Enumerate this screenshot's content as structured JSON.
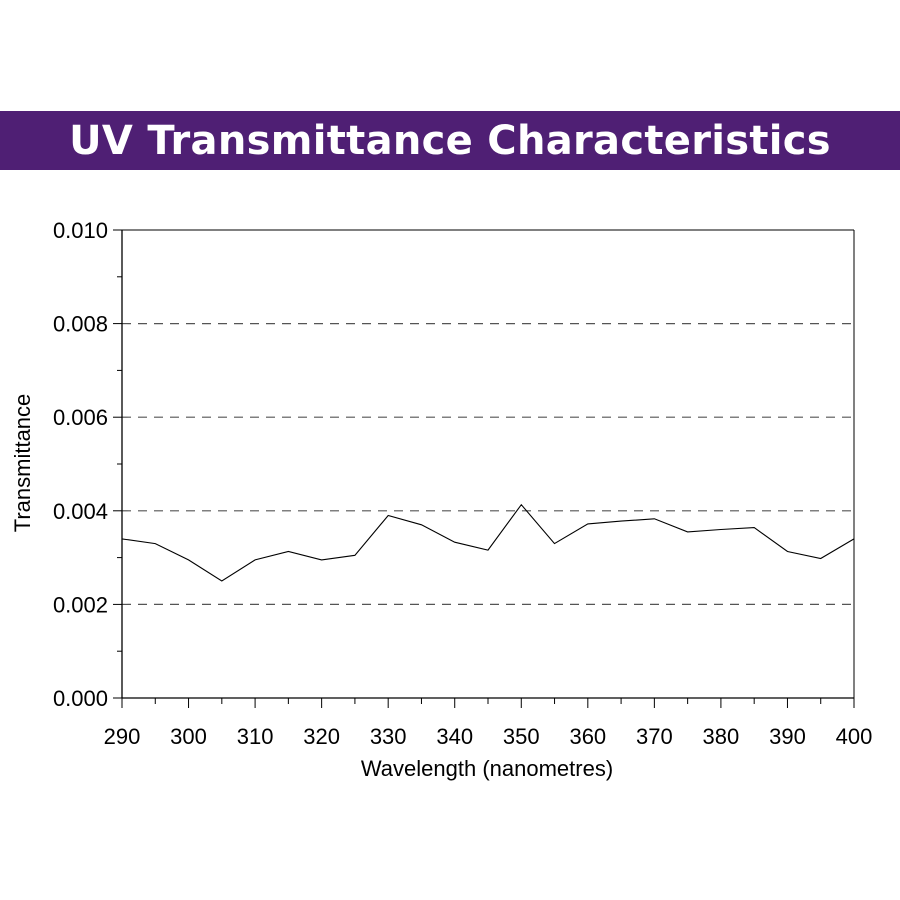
{
  "title": "UV Transmittance Characteristics",
  "colors": {
    "banner": "#4f1f74",
    "banner_text": "#ffffff",
    "line": "#000000"
  },
  "chart_data": {
    "type": "line",
    "xlabel": "Wavelength (nanometres)",
    "ylabel": "Transmittance",
    "xlim": [
      290,
      400
    ],
    "ylim": [
      0,
      0.01
    ],
    "x_ticks": [
      "290",
      "300",
      "310",
      "320",
      "330",
      "340",
      "350",
      "360",
      "370",
      "380",
      "390",
      "400"
    ],
    "y_ticks": [
      "0.000",
      "0.002",
      "0.004",
      "0.006",
      "0.008",
      "0.010"
    ],
    "grid": "horizontal dashed",
    "x": [
      290,
      295,
      300,
      305,
      310,
      315,
      320,
      325,
      330,
      335,
      340,
      345,
      350,
      355,
      360,
      365,
      370,
      375,
      380,
      385,
      390,
      395,
      400
    ],
    "y": [
      0.0034,
      0.0033,
      0.00295,
      0.0025,
      0.00295,
      0.00313,
      0.00295,
      0.00305,
      0.0039,
      0.0037,
      0.00333,
      0.00316,
      0.00413,
      0.0033,
      0.00372,
      0.00378,
      0.00383,
      0.00355,
      0.0036,
      0.00364,
      0.00313,
      0.00298,
      0.0034
    ]
  }
}
